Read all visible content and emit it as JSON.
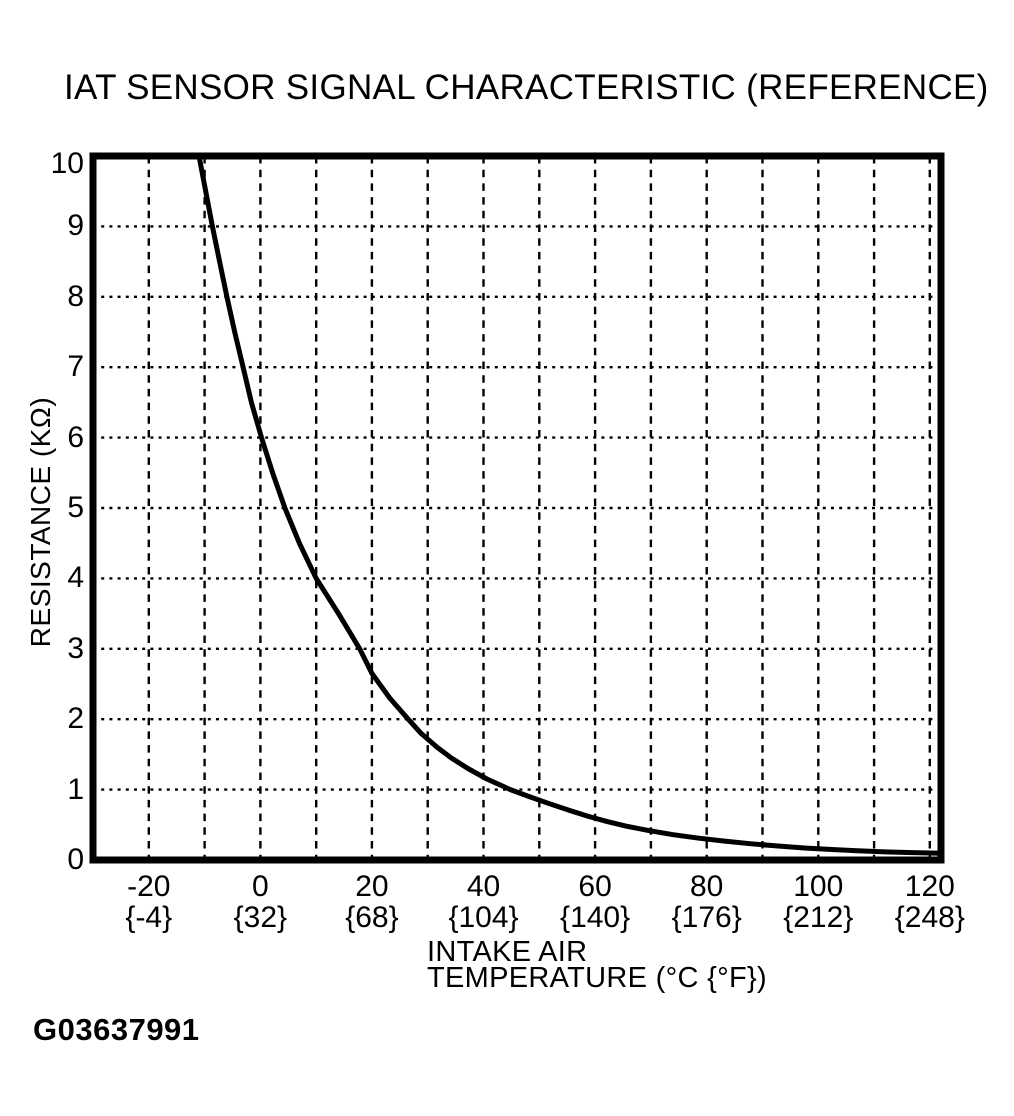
{
  "page": {
    "paper_color": "#ffffff",
    "ink_color": "#000000"
  },
  "footer": {
    "figure_id": "G03637991"
  },
  "chart_data": {
    "type": "line",
    "title": "IAT SENSOR SIGNAL CHARACTERISTIC (REFERENCE)",
    "ylabel": "RESISTANCE (KΩ)",
    "xlabel_lines": [
      "INTAKE AIR",
      "TEMPERATURE (°C {°F})"
    ],
    "xlim": [
      -30,
      122
    ],
    "ylim": [
      0,
      10
    ],
    "grid": true,
    "x_gridlines": {
      "from": -20,
      "to": 120,
      "step": 10,
      "style": "dashed"
    },
    "y_gridlines": {
      "from": 1,
      "to": 9,
      "step": 1,
      "style": "dotted"
    },
    "x_ticks": [
      {
        "t": -20,
        "celsius": "-20",
        "fahrenheit": "{-4}"
      },
      {
        "t": 0,
        "celsius": "0",
        "fahrenheit": "{32}"
      },
      {
        "t": 20,
        "celsius": "20",
        "fahrenheit": "{68}"
      },
      {
        "t": 40,
        "celsius": "40",
        "fahrenheit": "{104}"
      },
      {
        "t": 60,
        "celsius": "60",
        "fahrenheit": "{140}"
      },
      {
        "t": 80,
        "celsius": "80",
        "fahrenheit": "{176}"
      },
      {
        "t": 100,
        "celsius": "100",
        "fahrenheit": "{212}"
      },
      {
        "t": 120,
        "celsius": "120",
        "fahrenheit": "{248}"
      }
    ],
    "y_ticks": [
      {
        "r": 10,
        "label": "10"
      },
      {
        "r": 9,
        "label": "9"
      },
      {
        "r": 8,
        "label": "8"
      },
      {
        "r": 7,
        "label": "7"
      },
      {
        "r": 6,
        "label": "6"
      },
      {
        "r": 5,
        "label": "5"
      },
      {
        "r": 4,
        "label": "4"
      },
      {
        "r": 3,
        "label": "3"
      },
      {
        "r": 2,
        "label": "2"
      },
      {
        "r": 1,
        "label": "1"
      },
      {
        "r": 0,
        "label": "0"
      }
    ],
    "series": [
      {
        "name": "IAT sensor resistance vs intake air temperature",
        "units": {
          "x": "°C",
          "y": "KΩ"
        },
        "points": [
          [
            -11,
            10
          ],
          [
            -9.8,
            9.5
          ],
          [
            -8.6,
            9
          ],
          [
            -7.3,
            8.5
          ],
          [
            -6,
            8
          ],
          [
            -4.6,
            7.5
          ],
          [
            -3.1,
            7
          ],
          [
            -1.6,
            6.5
          ],
          [
            0.2,
            6
          ],
          [
            2.2,
            5.5
          ],
          [
            4.4,
            5
          ],
          [
            7,
            4.5
          ],
          [
            10,
            4
          ],
          [
            14,
            3.5
          ],
          [
            17.8,
            3
          ],
          [
            20,
            2.65
          ],
          [
            23.2,
            2.3
          ],
          [
            26.5,
            2.0
          ],
          [
            28.8,
            1.8
          ],
          [
            31.7,
            1.6
          ],
          [
            34.2,
            1.45
          ],
          [
            37.2,
            1.3
          ],
          [
            40.6,
            1.15
          ],
          [
            44.8,
            1.0
          ],
          [
            48.2,
            0.9
          ],
          [
            51.8,
            0.8
          ],
          [
            55.6,
            0.7
          ],
          [
            58.8,
            0.62
          ],
          [
            62,
            0.55
          ],
          [
            65.6,
            0.48
          ],
          [
            69.5,
            0.42
          ],
          [
            74,
            0.36
          ],
          [
            78.6,
            0.31
          ],
          [
            83,
            0.27
          ],
          [
            88,
            0.23
          ],
          [
            92.5,
            0.2
          ],
          [
            97.5,
            0.17
          ],
          [
            102,
            0.15
          ],
          [
            107,
            0.13
          ],
          [
            112,
            0.115
          ],
          [
            117,
            0.105
          ],
          [
            122,
            0.095
          ]
        ]
      }
    ]
  }
}
